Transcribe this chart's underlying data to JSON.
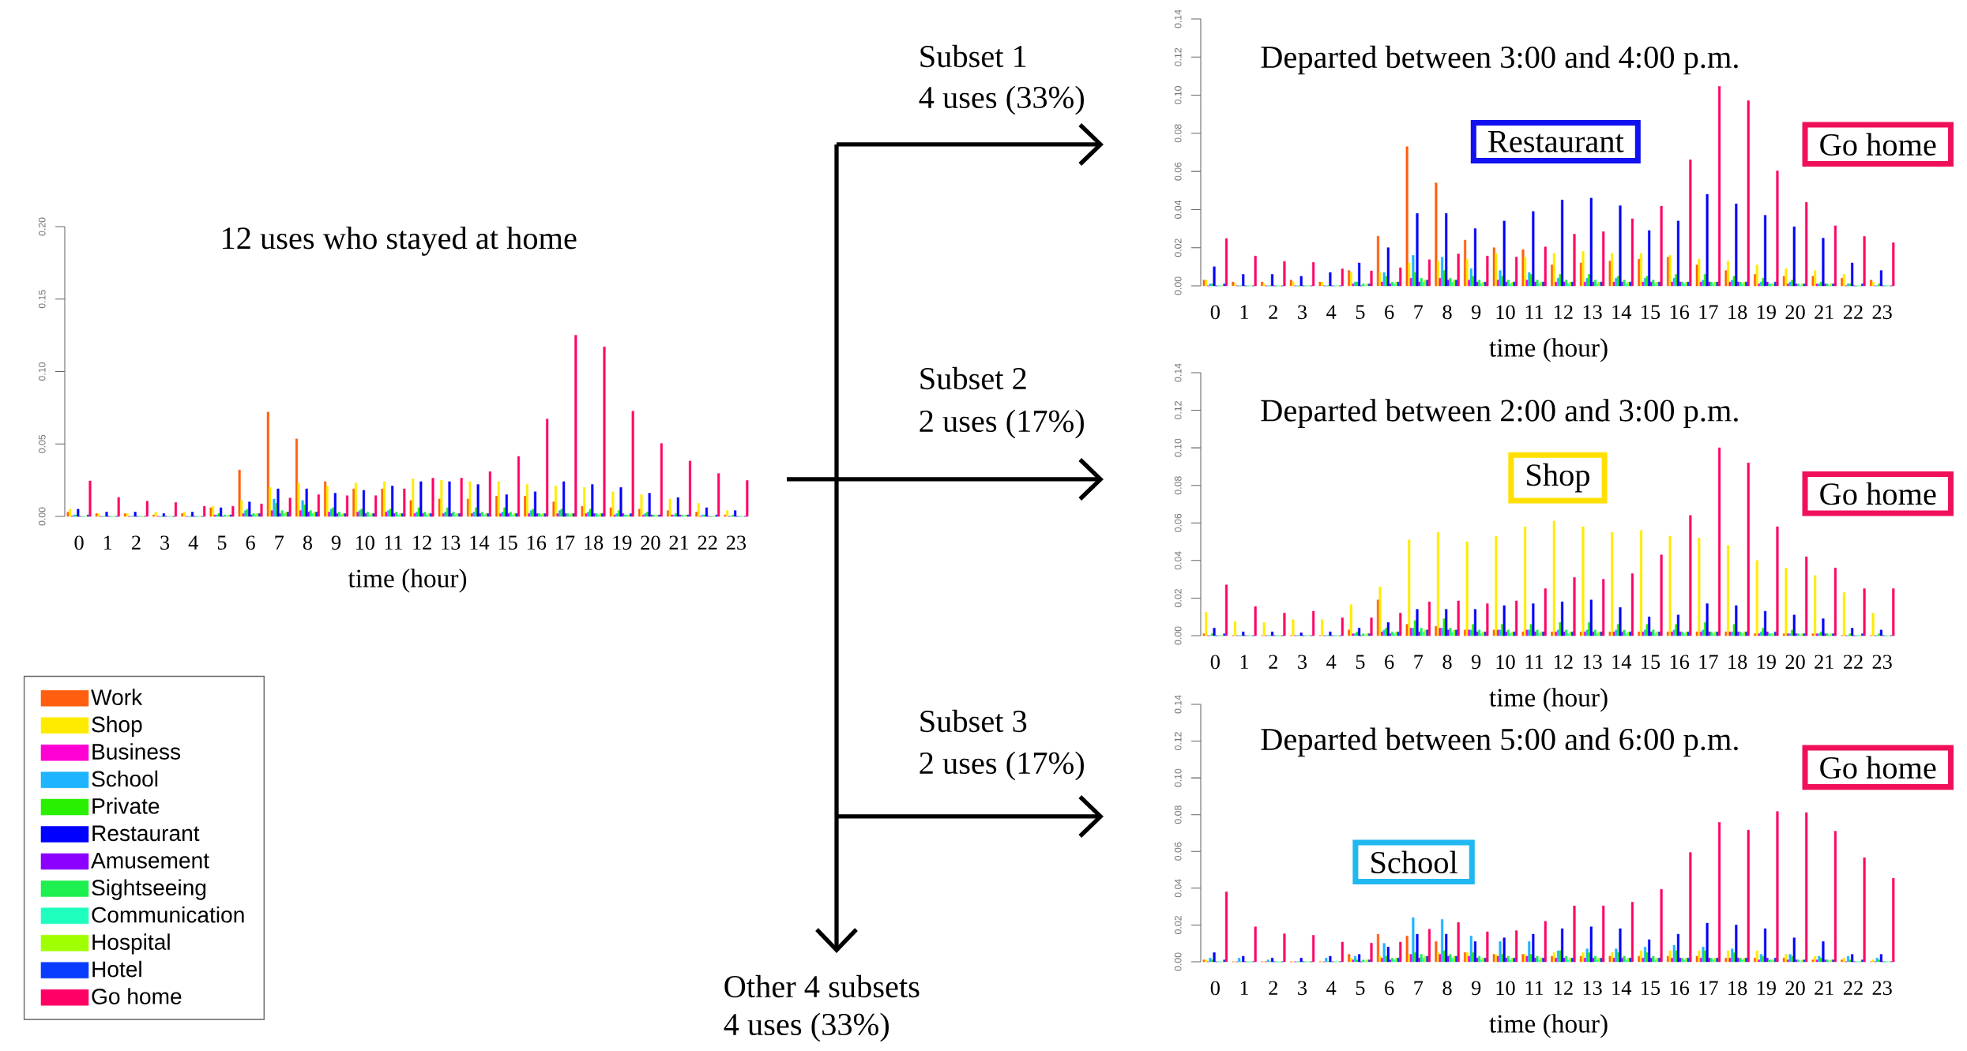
{
  "chart_data": [
    {
      "type": "bar",
      "title": "12 uses who stayed at home",
      "xlabel": "time (hour)",
      "categories": [
        "0",
        "1",
        "2",
        "3",
        "4",
        "5",
        "6",
        "7",
        "8",
        "9",
        "10",
        "11",
        "12",
        "13",
        "14",
        "15",
        "16",
        "17",
        "18",
        "19",
        "20",
        "21",
        "22",
        "23"
      ],
      "ylim": [
        0,
        0.2
      ],
      "yticks": [
        {
          "value": 0,
          "label": "0.00"
        },
        {
          "value": 0.05,
          "label": "0.05"
        },
        {
          "value": 0.1,
          "label": "0.10"
        },
        {
          "value": 0.15,
          "label": "0.15"
        },
        {
          "value": 0.2,
          "label": "0.20"
        }
      ],
      "legend": "bottom left",
      "annotations": [
        "Other 4 subsets",
        "4 uses (33%)"
      ],
      "series": [
        {
          "name": "Work",
          "color": "#ff5f0f",
          "values": [
            0.003,
            0.002,
            0.002,
            0.001,
            0.002,
            0.006,
            0.032,
            0.072,
            0.0535,
            0.024,
            0.019,
            0.019,
            0.011,
            0.012,
            0.012,
            0.014,
            0.014,
            0.01,
            0.007,
            0.006,
            0.005,
            0.004,
            0.003,
            0.001
          ]
        },
        {
          "name": "Shop",
          "color": "#ffeb00",
          "values": [
            0.005,
            0.002,
            0.002,
            0.003,
            0.003,
            0.007,
            0.011,
            0.02,
            0.023,
            0.021,
            0.023,
            0.024,
            0.026,
            0.025,
            0.024,
            0.024,
            0.022,
            0.021,
            0.02,
            0.017,
            0.015,
            0.012,
            0.009,
            0.004
          ]
        },
        {
          "name": "Business",
          "color": "#ff00d2",
          "values": [
            0,
            0,
            0,
            0,
            0,
            0.001,
            0.002,
            0.004,
            0.004,
            0.003,
            0.003,
            0.003,
            0.002,
            0.002,
            0.002,
            0.002,
            0.002,
            0.002,
            0.002,
            0.001,
            0.001,
            0.001,
            0,
            0
          ]
        },
        {
          "name": "School",
          "color": "#1eb4ff",
          "values": [
            0.001,
            0,
            0,
            0,
            0,
            0.001,
            0.004,
            0.012,
            0.011,
            0.005,
            0.004,
            0.004,
            0.003,
            0.003,
            0.003,
            0.003,
            0.004,
            0.004,
            0.003,
            0.002,
            0.002,
            0.001,
            0.001,
            0
          ]
        },
        {
          "name": "Private",
          "color": "#28f000",
          "values": [
            0.001,
            0,
            0,
            0,
            0,
            0.002,
            0.005,
            0.009,
            0.008,
            0.006,
            0.005,
            0.005,
            0.006,
            0.006,
            0.006,
            0.006,
            0.005,
            0.005,
            0.005,
            0.004,
            0.003,
            0.002,
            0.001,
            0.001
          ]
        },
        {
          "name": "Restaurant",
          "color": "#0000ff",
          "values": [
            0.005,
            0.003,
            0.003,
            0.002,
            0.003,
            0.006,
            0.01,
            0.019,
            0.019,
            0.016,
            0.018,
            0.021,
            0.024,
            0.024,
            0.022,
            0.015,
            0.017,
            0.024,
            0.022,
            0.02,
            0.016,
            0.013,
            0.006,
            0.004
          ]
        },
        {
          "name": "Amusement",
          "color": "#8c00ff",
          "values": [
            0,
            0,
            0,
            0,
            0,
            0,
            0.001,
            0.002,
            0.003,
            0.002,
            0.002,
            0.002,
            0.002,
            0.002,
            0.002,
            0.002,
            0.002,
            0.002,
            0.002,
            0.002,
            0.001,
            0.001,
            0,
            0
          ]
        },
        {
          "name": "Sightseeing",
          "color": "#1ef050",
          "values": [
            0,
            0,
            0,
            0,
            0,
            0.001,
            0.002,
            0.004,
            0.004,
            0.003,
            0.003,
            0.003,
            0.003,
            0.003,
            0.003,
            0.003,
            0.002,
            0.002,
            0.002,
            0.001,
            0.001,
            0.001,
            0,
            0
          ]
        },
        {
          "name": "Communication",
          "color": "#1effbe",
          "values": [
            0,
            0,
            0,
            0,
            0,
            0,
            0.001,
            0.002,
            0.002,
            0.001,
            0.001,
            0.001,
            0.001,
            0.001,
            0.001,
            0.001,
            0.001,
            0.001,
            0.001,
            0.001,
            0,
            0,
            0,
            0
          ]
        },
        {
          "name": "Hospital",
          "color": "#a0ff00",
          "values": [
            0,
            0,
            0,
            0,
            0,
            0.001,
            0.002,
            0.003,
            0.003,
            0.002,
            0.002,
            0.002,
            0.002,
            0.002,
            0.002,
            0.002,
            0.002,
            0.002,
            0.002,
            0.001,
            0.001,
            0.001,
            0,
            0
          ]
        },
        {
          "name": "Hotel",
          "color": "#0a3cff",
          "values": [
            0.001,
            0,
            0,
            0,
            0,
            0.001,
            0.002,
            0.003,
            0.003,
            0.002,
            0.002,
            0.002,
            0.002,
            0.002,
            0.002,
            0.002,
            0.002,
            0.002,
            0.002,
            0.002,
            0.001,
            0.001,
            0.001,
            0
          ]
        },
        {
          "name": "Go home",
          "color": "#ff0064",
          "values": [
            0.0245,
            0.0131,
            0.0105,
            0.0096,
            0.007,
            0.007,
            0.0086,
            0.0127,
            0.015,
            0.0143,
            0.0143,
            0.019,
            0.0264,
            0.0264,
            0.0309,
            0.0414,
            0.0672,
            0.125,
            0.117,
            0.0726,
            0.0503,
            0.0382,
            0.0296,
            0.0248
          ]
        }
      ]
    },
    {
      "type": "bar",
      "title": "Departed between 3:00 and 4:00 p.m.",
      "xlabel": "time (hour)",
      "categories": [
        "0",
        "1",
        "2",
        "3",
        "4",
        "5",
        "6",
        "7",
        "8",
        "9",
        "10",
        "11",
        "12",
        "13",
        "14",
        "15",
        "16",
        "17",
        "18",
        "19",
        "20",
        "21",
        "22",
        "23"
      ],
      "ylim": [
        0,
        0.14
      ],
      "yticks": [
        {
          "value": 0,
          "label": "0.00"
        },
        {
          "value": 0.02,
          "label": "0.02"
        },
        {
          "value": 0.04,
          "label": "0.04"
        },
        {
          "value": 0.06,
          "label": "0.06"
        },
        {
          "value": 0.08,
          "label": "0.08"
        },
        {
          "value": 0.1,
          "label": "0.10"
        },
        {
          "value": 0.12,
          "label": "0.12"
        },
        {
          "value": 0.14,
          "label": "0.14"
        }
      ],
      "annotations": [
        "Subset 1",
        "4 uses (33%)",
        "Restaurant",
        "Go home"
      ],
      "series": [
        {
          "color": "#ff5f0f",
          "values": [
            0.003,
            0.002,
            0.002,
            0.003,
            0.002,
            0.008,
            0.026,
            0.073,
            0.054,
            0.024,
            0.02,
            0.019,
            0.011,
            0.012,
            0.013,
            0.014,
            0.015,
            0.011,
            0.008,
            0.006,
            0.005,
            0.005,
            0.004,
            0.003
          ]
        },
        {
          "color": "#ffeb00",
          "values": [
            0.003,
            0.001,
            0.001,
            0.002,
            0.002,
            0.007,
            0.007,
            0.012,
            0.013,
            0.014,
            0.017,
            0.015,
            0.017,
            0.018,
            0.017,
            0.017,
            0.016,
            0.014,
            0.013,
            0.011,
            0.009,
            0.008,
            0.006,
            0.002
          ]
        },
        {
          "color": "#ff00d2",
          "values": [
            0,
            0,
            0,
            0,
            0,
            0.001,
            0.002,
            0.004,
            0.004,
            0.003,
            0.003,
            0.003,
            0.002,
            0.002,
            0.002,
            0.002,
            0.002,
            0.002,
            0.002,
            0.001,
            0.001,
            0.001,
            0,
            0
          ]
        },
        {
          "color": "#1eb4ff",
          "values": [
            0.001,
            0,
            0,
            0,
            0,
            0.002,
            0.007,
            0.016,
            0.015,
            0.009,
            0.008,
            0.007,
            0.004,
            0.004,
            0.004,
            0.004,
            0.004,
            0.003,
            0.003,
            0.002,
            0.002,
            0.001,
            0.001,
            0
          ]
        },
        {
          "color": "#28f000",
          "values": [
            0.001,
            0,
            0,
            0,
            0,
            0.002,
            0.005,
            0.007,
            0.008,
            0.005,
            0.005,
            0.006,
            0.006,
            0.006,
            0.005,
            0.005,
            0.006,
            0.006,
            0.005,
            0.004,
            0.003,
            0.002,
            0.001,
            0.001
          ]
        },
        {
          "color": "#0000ff",
          "values": [
            0.01,
            0.006,
            0.006,
            0.005,
            0.007,
            0.012,
            0.02,
            0.038,
            0.038,
            0.03,
            0.034,
            0.039,
            0.045,
            0.046,
            0.042,
            0.029,
            0.034,
            0.048,
            0.043,
            0.037,
            0.031,
            0.025,
            0.012,
            0.008
          ]
        },
        {
          "color": "#8c00ff",
          "values": [
            0,
            0,
            0,
            0,
            0,
            0,
            0.001,
            0.002,
            0.003,
            0.002,
            0.002,
            0.002,
            0.002,
            0.002,
            0.002,
            0.002,
            0.002,
            0.002,
            0.002,
            0.002,
            0.001,
            0.001,
            0,
            0
          ]
        },
        {
          "color": "#1ef050",
          "values": [
            0,
            0,
            0,
            0,
            0,
            0.001,
            0.002,
            0.004,
            0.004,
            0.003,
            0.003,
            0.003,
            0.003,
            0.003,
            0.003,
            0.003,
            0.002,
            0.002,
            0.002,
            0.001,
            0.001,
            0.001,
            0,
            0
          ]
        },
        {
          "color": "#1effbe",
          "values": [
            0,
            0,
            0,
            0,
            0,
            0,
            0.001,
            0.002,
            0.002,
            0.001,
            0.001,
            0.001,
            0.001,
            0.001,
            0.001,
            0.001,
            0.001,
            0.001,
            0.001,
            0.001,
            0,
            0,
            0,
            0
          ]
        },
        {
          "color": "#a0ff00",
          "values": [
            0,
            0,
            0,
            0,
            0,
            0.001,
            0.002,
            0.003,
            0.003,
            0.002,
            0.002,
            0.002,
            0.002,
            0.002,
            0.002,
            0.002,
            0.002,
            0.002,
            0.002,
            0.001,
            0.001,
            0.001,
            0,
            0
          ]
        },
        {
          "color": "#0a3cff",
          "values": [
            0.001,
            0,
            0,
            0,
            0,
            0.001,
            0.002,
            0.003,
            0.003,
            0.002,
            0.002,
            0.002,
            0.002,
            0.002,
            0.002,
            0.002,
            0.002,
            0.002,
            0.002,
            0.002,
            0.001,
            0.001,
            0.001,
            0
          ]
        },
        {
          "color": "#ff0064",
          "values": [
            0.0248,
            0.0156,
            0.0128,
            0.0123,
            0.0089,
            0.0078,
            0.0095,
            0.0137,
            0.0167,
            0.0156,
            0.0151,
            0.0204,
            0.0271,
            0.0284,
            0.0352,
            0.0418,
            0.0661,
            0.1046,
            0.0971,
            0.0603,
            0.0438,
            0.0315,
            0.0259,
            0.0226
          ]
        }
      ]
    },
    {
      "type": "bar",
      "title": "Departed between 2:00 and 3:00 p.m.",
      "xlabel": "time (hour)",
      "categories": [
        "0",
        "1",
        "2",
        "3",
        "4",
        "5",
        "6",
        "7",
        "8",
        "9",
        "10",
        "11",
        "12",
        "13",
        "14",
        "15",
        "16",
        "17",
        "18",
        "19",
        "20",
        "21",
        "22",
        "23"
      ],
      "ylim": [
        0,
        0.14
      ],
      "yticks": [
        {
          "value": 0,
          "label": "0.00"
        },
        {
          "value": 0.02,
          "label": "0.02"
        },
        {
          "value": 0.04,
          "label": "0.04"
        },
        {
          "value": 0.06,
          "label": "0.06"
        },
        {
          "value": 0.08,
          "label": "0.08"
        },
        {
          "value": 0.1,
          "label": "0.10"
        },
        {
          "value": 0.12,
          "label": "0.12"
        },
        {
          "value": 0.14,
          "label": "0.14"
        }
      ],
      "annotations": [
        "Subset 2",
        "2 uses (17%)",
        "Shop",
        "Go home"
      ],
      "series": [
        {
          "color": "#ff5f0f",
          "values": [
            0.001,
            0,
            0,
            0,
            0,
            0.003,
            0.019,
            0.006,
            0.005,
            0.003,
            0.003,
            0.002,
            0.002,
            0.002,
            0.002,
            0.002,
            0.002,
            0.002,
            0.002,
            0.001,
            0.001,
            0.001,
            0,
            0
          ]
        },
        {
          "color": "#ffeb00",
          "values": [
            0.0125,
            0.0075,
            0.007,
            0.0085,
            0.0085,
            0.0165,
            0.026,
            0.051,
            0.055,
            0.05,
            0.053,
            0.058,
            0.061,
            0.058,
            0.055,
            0.056,
            0.053,
            0.052,
            0.048,
            0.04,
            0.036,
            0.032,
            0.023,
            0.012
          ]
        },
        {
          "color": "#ff00d2",
          "values": [
            0,
            0,
            0,
            0,
            0,
            0.001,
            0.002,
            0.004,
            0.004,
            0.003,
            0.003,
            0.003,
            0.002,
            0.002,
            0.002,
            0.002,
            0.002,
            0.002,
            0.002,
            0.001,
            0.001,
            0.001,
            0,
            0
          ]
        },
        {
          "color": "#1eb4ff",
          "values": [
            0,
            0,
            0,
            0,
            0,
            0.001,
            0.003,
            0.004,
            0.004,
            0.003,
            0.003,
            0.003,
            0.003,
            0.003,
            0.003,
            0.003,
            0.003,
            0.003,
            0.002,
            0.002,
            0.001,
            0.001,
            0,
            0
          ]
        },
        {
          "color": "#28f000",
          "values": [
            0.001,
            0,
            0,
            0,
            0,
            0.002,
            0.004,
            0.008,
            0.009,
            0.006,
            0.006,
            0.006,
            0.007,
            0.007,
            0.006,
            0.006,
            0.006,
            0.007,
            0.006,
            0.004,
            0.003,
            0.002,
            0.001,
            0.001
          ]
        },
        {
          "color": "#0000ff",
          "values": [
            0.004,
            0.002,
            0.002,
            0.0015,
            0.002,
            0.004,
            0.007,
            0.014,
            0.014,
            0.014,
            0.016,
            0.017,
            0.018,
            0.019,
            0.015,
            0.01,
            0.011,
            0.017,
            0.016,
            0.013,
            0.011,
            0.009,
            0.004,
            0.003
          ]
        },
        {
          "color": "#8c00ff",
          "values": [
            0,
            0,
            0,
            0,
            0,
            0,
            0.001,
            0.002,
            0.003,
            0.002,
            0.002,
            0.002,
            0.002,
            0.002,
            0.002,
            0.002,
            0.002,
            0.002,
            0.002,
            0.002,
            0.001,
            0.001,
            0,
            0
          ]
        },
        {
          "color": "#1ef050",
          "values": [
            0,
            0,
            0,
            0,
            0,
            0.001,
            0.002,
            0.004,
            0.004,
            0.003,
            0.003,
            0.003,
            0.003,
            0.003,
            0.003,
            0.003,
            0.002,
            0.002,
            0.002,
            0.001,
            0.001,
            0.001,
            0,
            0
          ]
        },
        {
          "color": "#1effbe",
          "values": [
            0,
            0,
            0,
            0,
            0,
            0,
            0.001,
            0.002,
            0.002,
            0.001,
            0.001,
            0.001,
            0.001,
            0.001,
            0.001,
            0.001,
            0.001,
            0.001,
            0.001,
            0.001,
            0,
            0,
            0,
            0
          ]
        },
        {
          "color": "#a0ff00",
          "values": [
            0,
            0,
            0,
            0,
            0,
            0.001,
            0.002,
            0.003,
            0.003,
            0.002,
            0.002,
            0.002,
            0.002,
            0.002,
            0.002,
            0.002,
            0.002,
            0.002,
            0.002,
            0.001,
            0.001,
            0.001,
            0,
            0
          ]
        },
        {
          "color": "#0a3cff",
          "values": [
            0.001,
            0,
            0,
            0,
            0,
            0.001,
            0.002,
            0.003,
            0.003,
            0.002,
            0.002,
            0.002,
            0.002,
            0.002,
            0.002,
            0.002,
            0.002,
            0.002,
            0.002,
            0.002,
            0.001,
            0.001,
            0.001,
            0
          ]
        },
        {
          "color": "#ff0064",
          "values": [
            0.027,
            0.0155,
            0.012,
            0.013,
            0.0095,
            0.0095,
            0.012,
            0.018,
            0.0185,
            0.017,
            0.0185,
            0.025,
            0.031,
            0.03,
            0.033,
            0.043,
            0.064,
            0.1,
            0.092,
            0.058,
            0.042,
            0.036,
            0.025,
            0.025
          ]
        }
      ]
    },
    {
      "type": "bar",
      "title": "Departed between 5:00 and 6:00 p.m.",
      "xlabel": "time (hour)",
      "categories": [
        "0",
        "1",
        "2",
        "3",
        "4",
        "5",
        "6",
        "7",
        "8",
        "9",
        "10",
        "11",
        "12",
        "13",
        "14",
        "15",
        "16",
        "17",
        "18",
        "19",
        "20",
        "21",
        "22",
        "23"
      ],
      "ylim": [
        0,
        0.14
      ],
      "yticks": [
        {
          "value": 0,
          "label": "0.00"
        },
        {
          "value": 0.02,
          "label": "0.02"
        },
        {
          "value": 0.04,
          "label": "0.04"
        },
        {
          "value": 0.06,
          "label": "0.06"
        },
        {
          "value": 0.08,
          "label": "0.08"
        },
        {
          "value": 0.1,
          "label": "0.10"
        },
        {
          "value": 0.12,
          "label": "0.12"
        },
        {
          "value": 0.14,
          "label": "0.14"
        }
      ],
      "annotations": [
        "Subset 3",
        "2 uses (17%)",
        "School",
        "Go home"
      ],
      "series": [
        {
          "color": "#ff5f0f",
          "values": [
            0.001,
            0,
            0,
            0,
            0,
            0.004,
            0.015,
            0.014,
            0.011,
            0.005,
            0.004,
            0.004,
            0.003,
            0.003,
            0.003,
            0.003,
            0.003,
            0.003,
            0.002,
            0.002,
            0.002,
            0.001,
            0.001,
            0
          ]
        },
        {
          "color": "#ffeb00",
          "values": [
            0.001,
            0,
            0,
            0,
            0,
            0.002,
            0.003,
            0.004,
            0.005,
            0.005,
            0.004,
            0.004,
            0.005,
            0.005,
            0.005,
            0.006,
            0.006,
            0.006,
            0.006,
            0.006,
            0.004,
            0.003,
            0.002,
            0.001
          ]
        },
        {
          "color": "#ff00d2",
          "values": [
            0,
            0,
            0,
            0,
            0,
            0.001,
            0.002,
            0.004,
            0.004,
            0.003,
            0.003,
            0.003,
            0.002,
            0.002,
            0.002,
            0.002,
            0.002,
            0.002,
            0.002,
            0.001,
            0.001,
            0.001,
            0,
            0
          ]
        },
        {
          "color": "#1eb4ff",
          "values": [
            0.002,
            0.002,
            0.001,
            0,
            0.002,
            0.003,
            0.01,
            0.024,
            0.023,
            0.014,
            0.011,
            0.011,
            0.006,
            0.007,
            0.007,
            0.008,
            0.009,
            0.008,
            0.007,
            0.004,
            0.004,
            0.003,
            0.003,
            0.002
          ]
        },
        {
          "color": "#28f000",
          "values": [
            0.001,
            0,
            0,
            0,
            0,
            0.001,
            0.003,
            0.005,
            0.006,
            0.005,
            0.004,
            0.004,
            0.006,
            0.005,
            0.005,
            0.005,
            0.006,
            0.006,
            0.005,
            0.003,
            0.003,
            0.002,
            0.001,
            0.001
          ]
        },
        {
          "color": "#0000ff",
          "values": [
            0.005,
            0.003,
            0.002,
            0.002,
            0.003,
            0.004,
            0.008,
            0.015,
            0.015,
            0.011,
            0.013,
            0.015,
            0.018,
            0.019,
            0.018,
            0.012,
            0.015,
            0.021,
            0.02,
            0.018,
            0.013,
            0.011,
            0.004,
            0.004
          ]
        },
        {
          "color": "#8c00ff",
          "values": [
            0,
            0,
            0,
            0,
            0,
            0,
            0.001,
            0.002,
            0.003,
            0.002,
            0.002,
            0.002,
            0.002,
            0.002,
            0.002,
            0.002,
            0.002,
            0.002,
            0.002,
            0.002,
            0.001,
            0.001,
            0,
            0
          ]
        },
        {
          "color": "#1ef050",
          "values": [
            0,
            0,
            0,
            0,
            0,
            0.001,
            0.002,
            0.004,
            0.004,
            0.003,
            0.003,
            0.003,
            0.003,
            0.003,
            0.003,
            0.003,
            0.002,
            0.002,
            0.002,
            0.001,
            0.001,
            0.001,
            0,
            0
          ]
        },
        {
          "color": "#1effbe",
          "values": [
            0,
            0,
            0,
            0,
            0,
            0,
            0.001,
            0.002,
            0.002,
            0.001,
            0.001,
            0.001,
            0.001,
            0.001,
            0.001,
            0.001,
            0.001,
            0.001,
            0.001,
            0.001,
            0,
            0,
            0,
            0
          ]
        },
        {
          "color": "#a0ff00",
          "values": [
            0,
            0,
            0,
            0,
            0,
            0.001,
            0.002,
            0.003,
            0.003,
            0.002,
            0.002,
            0.002,
            0.002,
            0.002,
            0.002,
            0.002,
            0.002,
            0.002,
            0.002,
            0.001,
            0.001,
            0.001,
            0,
            0
          ]
        },
        {
          "color": "#0a3cff",
          "values": [
            0.001,
            0,
            0,
            0,
            0,
            0.001,
            0.002,
            0.003,
            0.003,
            0.002,
            0.002,
            0.002,
            0.002,
            0.002,
            0.002,
            0.002,
            0.002,
            0.002,
            0.002,
            0.002,
            0.001,
            0.001,
            0.001,
            0
          ]
        },
        {
          "color": "#ff0064",
          "values": [
            0.038,
            0.019,
            0.0152,
            0.0144,
            0.0107,
            0.0101,
            0.0107,
            0.0177,
            0.0214,
            0.0163,
            0.0169,
            0.022,
            0.0304,
            0.0304,
            0.0324,
            0.0394,
            0.0594,
            0.0758,
            0.0716,
            0.0817,
            0.0811,
            0.071,
            0.0566,
            0.0454
          ]
        }
      ]
    }
  ]
}
